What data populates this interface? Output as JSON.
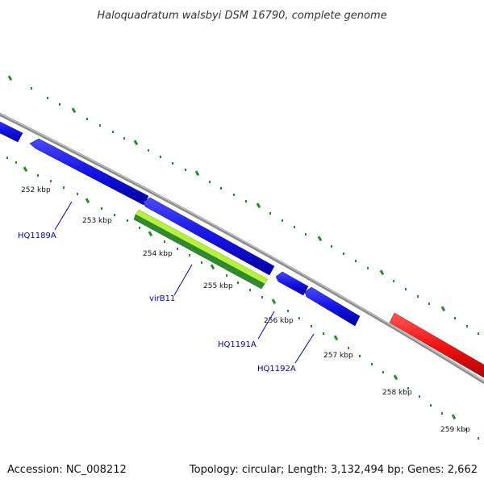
{
  "title": "Haloquadratum walsbyi DSM 16790, complete genome",
  "footer": {
    "accession": "Accession: NC_008212",
    "summary": "Topology: circular; Length: 3,132,494 bp; Genes: 2,662"
  },
  "kbp_labels": [
    "252 kbp",
    "253 kbp",
    "254 kbp",
    "255 kbp",
    "256 kbp",
    "257 kbp",
    "258 kbp",
    "259 kbp"
  ],
  "gene_labels": [
    "HQ1189A",
    "virB11",
    "HQ1191A",
    "HQ1192A"
  ],
  "colors": {
    "backbone": "#8a8a8a",
    "tick": "#2a8a2a",
    "gene_blue": "#1414e6",
    "gene_green_light": "#b8f040",
    "gene_green_dark": "#2e8b2e",
    "gene_red": "#ee1111",
    "label_blue": "#0000aa"
  }
}
